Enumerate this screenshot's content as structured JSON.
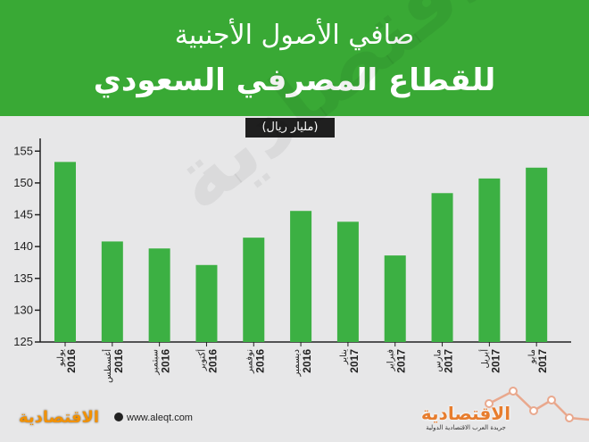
{
  "header": {
    "title_line1": "صافي الأصول الأجنبية",
    "title_line2": "للقطاع المصرفي السعودي",
    "unit": "(مليار ريال)"
  },
  "colors": {
    "header": "#39a935",
    "bar": "#3cb043",
    "background": "#e7e7e8",
    "accent_line": "#e9a88d"
  },
  "chart_data": {
    "type": "bar",
    "categories": [
      "يوليو 2016",
      "أغسطس 2016",
      "سبتمبر 2016",
      "أكتوبر 2016",
      "نوفمبر 2016",
      "ديسمبر 2016",
      "يناير 2017",
      "فبراير 2017",
      "مارس 2017",
      "أبريل 2017",
      "مايو 2017"
    ],
    "values": [
      153.3,
      140.8,
      139.7,
      137.1,
      141.4,
      145.6,
      143.9,
      138.6,
      148.4,
      150.7,
      152.4
    ],
    "ylim": [
      125,
      157
    ],
    "yticks": [
      125,
      130,
      135,
      140,
      145,
      150,
      155
    ],
    "title": "",
    "xlabel": "",
    "ylabel": ""
  },
  "watermark": "الاقتصادية",
  "footer": {
    "left_logo": "الاقتصادية",
    "website": "www.aleqt.com",
    "right_logo": "الاقتصادية",
    "right_logo_sub": "جريدة العرب الاقتصادية الدولية"
  }
}
